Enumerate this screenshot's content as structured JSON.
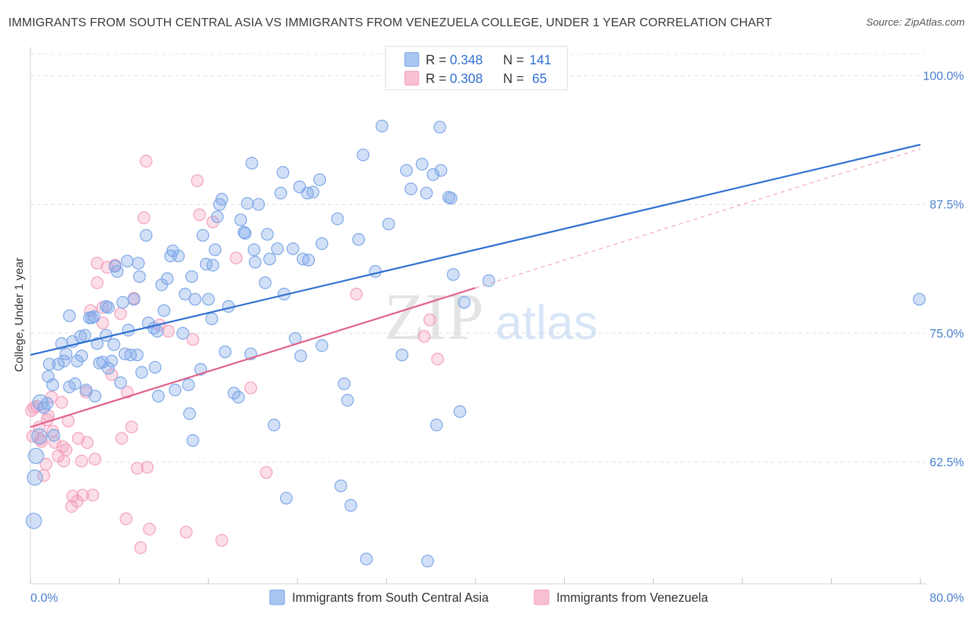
{
  "title": "IMMIGRANTS FROM SOUTH CENTRAL ASIA VS IMMIGRANTS FROM VENEZUELA COLLEGE, UNDER 1 YEAR CORRELATION CHART",
  "source": "Source: ZipAtlas.com",
  "watermark": {
    "zip": "ZIP",
    "atlas": "atlas"
  },
  "colors": {
    "series1": "#7da7e8",
    "series1_line": "#2f6fd0",
    "series2": "#f4a0bc",
    "series2_line": "#e0628a",
    "tick": "#4a7fd0"
  },
  "legend": {
    "rows": [
      {
        "r_label": "R =",
        "r_value": "0.348",
        "n_label": "N =",
        "n_value": "141"
      },
      {
        "r_label": "R =",
        "r_value": "0.308",
        "n_label": "N =",
        "n_value": "65"
      }
    ]
  },
  "chart_data": {
    "type": "scatter",
    "title": "IMMIGRANTS FROM SOUTH CENTRAL ASIA VS IMMIGRANTS FROM VENEZUELA COLLEGE, UNDER 1 YEAR CORRELATION CHART",
    "ylabel": "College, Under 1 year",
    "xlabel": "",
    "xlim": [
      0,
      80
    ],
    "ylim": [
      51.5,
      102.5
    ],
    "x_tick_labels": [
      "0.0%",
      "80.0%"
    ],
    "y_ticks": [
      62.5,
      75.0,
      87.5,
      100.0
    ],
    "y_tick_labels": [
      "62.5%",
      "75.0%",
      "87.5%",
      "100.0%"
    ],
    "grid": "horizontal dashed",
    "legend_position": "top-center",
    "series": [
      {
        "name": "Immigrants from South Central Asia",
        "R": 0.348,
        "N": 141,
        "trend": {
          "x": [
            0,
            80
          ],
          "y": [
            72.9,
            93.3
          ]
        },
        "points": [
          [
            0.3,
            56.8
          ],
          [
            0.4,
            61.0
          ],
          [
            0.5,
            63.1
          ],
          [
            0.8,
            65.0
          ],
          [
            1.2,
            67.8
          ],
          [
            1.5,
            68.2
          ],
          [
            1.6,
            70.8
          ],
          [
            2.0,
            70.0
          ],
          [
            2.5,
            72.0
          ],
          [
            2.8,
            74.0
          ],
          [
            3.0,
            72.3
          ],
          [
            3.2,
            73.0
          ],
          [
            3.5,
            76.7
          ],
          [
            3.8,
            74.2
          ],
          [
            4.2,
            72.3
          ],
          [
            4.5,
            74.7
          ],
          [
            4.6,
            72.8
          ],
          [
            4.9,
            74.8
          ],
          [
            5.3,
            76.5
          ],
          [
            5.5,
            76.5
          ],
          [
            5.7,
            76.6
          ],
          [
            5.0,
            69.5
          ],
          [
            6.0,
            74.0
          ],
          [
            6.2,
            72.1
          ],
          [
            6.5,
            72.2
          ],
          [
            6.8,
            74.8
          ],
          [
            7.0,
            77.5
          ],
          [
            7.0,
            71.6
          ],
          [
            7.3,
            72.3
          ],
          [
            7.5,
            73.9
          ],
          [
            7.6,
            81.5
          ],
          [
            7.8,
            81.0
          ],
          [
            8.3,
            78.0
          ],
          [
            8.5,
            73.0
          ],
          [
            8.7,
            82.0
          ],
          [
            8.8,
            75.3
          ],
          [
            9.0,
            72.9
          ],
          [
            9.3,
            78.3
          ],
          [
            9.6,
            72.9
          ],
          [
            9.7,
            81.8
          ],
          [
            9.8,
            80.5
          ],
          [
            10.0,
            71.2
          ],
          [
            10.4,
            84.5
          ],
          [
            10.6,
            76.0
          ],
          [
            11.1,
            75.5
          ],
          [
            11.2,
            71.7
          ],
          [
            11.4,
            75.2
          ],
          [
            11.8,
            79.7
          ],
          [
            12.0,
            77.2
          ],
          [
            12.3,
            80.3
          ],
          [
            12.6,
            82.5
          ],
          [
            12.8,
            83.0
          ],
          [
            13.0,
            69.5
          ],
          [
            13.3,
            82.5
          ],
          [
            13.7,
            75.0
          ],
          [
            13.9,
            78.8
          ],
          [
            14.2,
            70.0
          ],
          [
            14.3,
            67.2
          ],
          [
            14.5,
            80.5
          ],
          [
            14.8,
            78.3
          ],
          [
            15.3,
            71.5
          ],
          [
            15.5,
            84.5
          ],
          [
            15.8,
            81.7
          ],
          [
            16.0,
            78.3
          ],
          [
            16.3,
            76.4
          ],
          [
            16.4,
            81.6
          ],
          [
            16.6,
            83.1
          ],
          [
            16.8,
            86.3
          ],
          [
            17.0,
            87.5
          ],
          [
            17.2,
            88.0
          ],
          [
            17.5,
            73.2
          ],
          [
            17.8,
            77.6
          ],
          [
            18.3,
            69.2
          ],
          [
            18.7,
            68.8
          ],
          [
            18.9,
            86.0
          ],
          [
            19.2,
            84.8
          ],
          [
            19.3,
            84.7
          ],
          [
            19.5,
            87.6
          ],
          [
            19.8,
            73.0
          ],
          [
            19.9,
            91.5
          ],
          [
            20.1,
            83.1
          ],
          [
            20.2,
            81.9
          ],
          [
            20.5,
            87.5
          ],
          [
            21.1,
            79.9
          ],
          [
            21.3,
            84.6
          ],
          [
            21.5,
            82.2
          ],
          [
            21.9,
            66.1
          ],
          [
            22.2,
            83.2
          ],
          [
            22.5,
            88.6
          ],
          [
            22.7,
            90.6
          ],
          [
            22.8,
            78.8
          ],
          [
            23.6,
            83.2
          ],
          [
            23.8,
            74.5
          ],
          [
            24.2,
            89.2
          ],
          [
            24.3,
            72.8
          ],
          [
            24.5,
            82.2
          ],
          [
            24.9,
            88.6
          ],
          [
            25.0,
            82.1
          ],
          [
            25.4,
            88.7
          ],
          [
            26.0,
            89.9
          ],
          [
            26.2,
            83.7
          ],
          [
            26.2,
            73.8
          ],
          [
            27.6,
            86.1
          ],
          [
            28.2,
            70.1
          ],
          [
            28.5,
            68.5
          ],
          [
            28.8,
            58.3
          ],
          [
            29.5,
            84.1
          ],
          [
            29.9,
            92.3
          ],
          [
            30.2,
            53.1
          ],
          [
            31.0,
            81.0
          ],
          [
            31.6,
            95.1
          ],
          [
            32.2,
            85.6
          ],
          [
            33.4,
            72.9
          ],
          [
            33.8,
            90.8
          ],
          [
            34.2,
            89.0
          ],
          [
            35.2,
            91.4
          ],
          [
            35.6,
            88.6
          ],
          [
            35.7,
            52.9
          ],
          [
            36.2,
            90.4
          ],
          [
            36.5,
            66.1
          ],
          [
            36.8,
            95.0
          ],
          [
            36.9,
            90.8
          ],
          [
            37.6,
            88.2
          ],
          [
            37.8,
            88.1
          ],
          [
            38.0,
            80.7
          ],
          [
            38.6,
            67.4
          ],
          [
            39.0,
            78.0
          ],
          [
            41.2,
            80.1
          ],
          [
            79.9,
            78.3
          ],
          [
            2.1,
            65.1
          ],
          [
            11.5,
            68.9
          ],
          [
            14.6,
            64.6
          ],
          [
            27.9,
            60.2
          ],
          [
            23.0,
            59.0
          ],
          [
            6.8,
            77.6
          ],
          [
            4.0,
            70.1
          ],
          [
            0.9,
            68.3
          ],
          [
            1.7,
            72.0
          ],
          [
            3.5,
            69.8
          ],
          [
            8.1,
            70.2
          ],
          [
            5.8,
            68.9
          ]
        ]
      },
      {
        "name": "Immigrants from Venezuela",
        "R": 0.308,
        "N": 65,
        "trend": {
          "x": [
            0,
            40
          ],
          "y": [
            65.9,
            79.4
          ]
        },
        "trend_extension": {
          "x": [
            40,
            80
          ],
          "y": [
            79.4,
            92.9
          ]
        },
        "points": [
          [
            0.2,
            65.0
          ],
          [
            0.3,
            67.8
          ],
          [
            0.6,
            67.9
          ],
          [
            0.8,
            65.9
          ],
          [
            0.9,
            64.7
          ],
          [
            1.0,
            64.5
          ],
          [
            1.2,
            61.2
          ],
          [
            1.4,
            62.3
          ],
          [
            1.5,
            66.6
          ],
          [
            1.6,
            67.0
          ],
          [
            1.9,
            68.8
          ],
          [
            2.0,
            65.5
          ],
          [
            2.2,
            64.4
          ],
          [
            2.5,
            63.1
          ],
          [
            2.8,
            68.3
          ],
          [
            2.9,
            64.0
          ],
          [
            3.0,
            62.6
          ],
          [
            3.2,
            63.7
          ],
          [
            3.4,
            66.5
          ],
          [
            3.7,
            58.2
          ],
          [
            3.8,
            59.2
          ],
          [
            4.2,
            58.7
          ],
          [
            4.3,
            64.8
          ],
          [
            4.6,
            62.6
          ],
          [
            4.7,
            59.3
          ],
          [
            5.0,
            69.3
          ],
          [
            5.1,
            64.4
          ],
          [
            5.4,
            77.2
          ],
          [
            5.6,
            59.3
          ],
          [
            5.8,
            62.8
          ],
          [
            6.0,
            81.8
          ],
          [
            6.0,
            79.9
          ],
          [
            6.5,
            77.5
          ],
          [
            6.5,
            76.0
          ],
          [
            6.9,
            81.4
          ],
          [
            7.3,
            71.0
          ],
          [
            7.6,
            81.6
          ],
          [
            8.1,
            76.9
          ],
          [
            8.2,
            64.8
          ],
          [
            8.6,
            57.0
          ],
          [
            8.7,
            69.3
          ],
          [
            9.1,
            65.9
          ],
          [
            9.3,
            78.4
          ],
          [
            9.6,
            61.9
          ],
          [
            9.9,
            54.2
          ],
          [
            10.2,
            86.2
          ],
          [
            10.4,
            91.7
          ],
          [
            10.5,
            62.0
          ],
          [
            10.7,
            56.0
          ],
          [
            11.6,
            75.8
          ],
          [
            12.4,
            75.2
          ],
          [
            14.0,
            55.7
          ],
          [
            14.6,
            74.4
          ],
          [
            15.0,
            89.8
          ],
          [
            15.2,
            86.5
          ],
          [
            16.4,
            85.8
          ],
          [
            17.2,
            54.9
          ],
          [
            18.5,
            82.3
          ],
          [
            19.8,
            69.7
          ],
          [
            21.2,
            61.5
          ],
          [
            29.3,
            78.8
          ],
          [
            35.4,
            74.7
          ],
          [
            35.9,
            76.3
          ],
          [
            36.6,
            72.5
          ],
          [
            0.1,
            67.5
          ]
        ]
      }
    ]
  },
  "bottom_legend": {
    "items": [
      {
        "label": "Immigrants from South Central Asia"
      },
      {
        "label": "Immigrants from Venezuela"
      }
    ]
  }
}
